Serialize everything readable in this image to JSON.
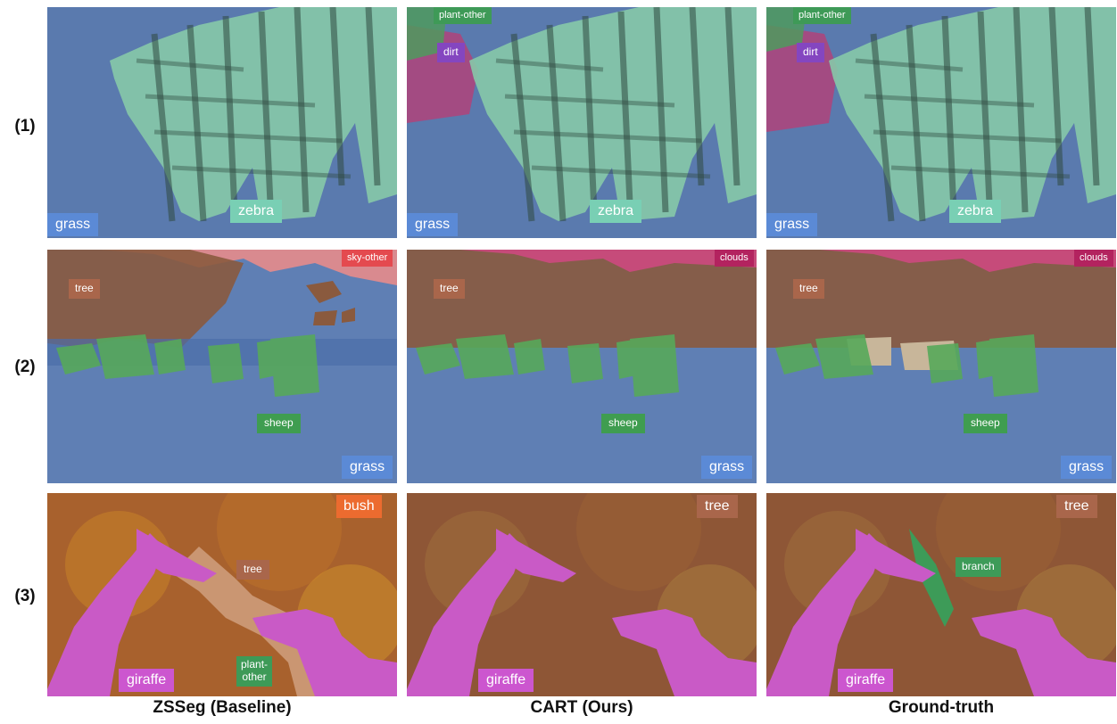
{
  "row_labels": [
    "(1)",
    "(2)",
    "(3)"
  ],
  "column_captions": [
    "ZSSeg (Baseline)",
    "CART (Ours)",
    "Ground-truth"
  ],
  "colors": {
    "grass": "#5b8ad6",
    "zebra": "#79cfb4",
    "dirt": "#8446c0",
    "plant_other": "#3e9a57",
    "tree": "#a9664b",
    "sky_other": "#e44a4f",
    "clouds": "#b3235f",
    "sheep": "#3f9d50",
    "bush": "#ec6b2f",
    "giraffe": "#cc56cf",
    "branch": "#3d9b58"
  },
  "rows": {
    "zebra": {
      "zsseg": {
        "grass": "grass",
        "zebra": "zebra"
      },
      "cart": {
        "plant_other": "plant-other",
        "dirt": "dirt",
        "grass": "grass",
        "zebra": "zebra"
      },
      "gt": {
        "plant_other": "plant-other",
        "dirt": "dirt",
        "grass": "grass",
        "zebra": "zebra"
      }
    },
    "sheep": {
      "zsseg": {
        "sky": "sky-other",
        "tree": "tree",
        "sheep": "sheep",
        "grass": "grass"
      },
      "cart": {
        "sky": "clouds",
        "tree": "tree",
        "sheep": "sheep",
        "grass": "grass"
      },
      "gt": {
        "sky": "clouds",
        "tree": "tree",
        "sheep": "sheep",
        "grass": "grass"
      }
    },
    "giraffe": {
      "zsseg": {
        "corner": "bush",
        "tree": "tree",
        "plant_other": "plant-\nother",
        "giraffe": "giraffe"
      },
      "cart": {
        "corner": "tree",
        "giraffe": "giraffe"
      },
      "gt": {
        "corner": "tree",
        "branch": "branch",
        "giraffe": "giraffe"
      }
    }
  }
}
